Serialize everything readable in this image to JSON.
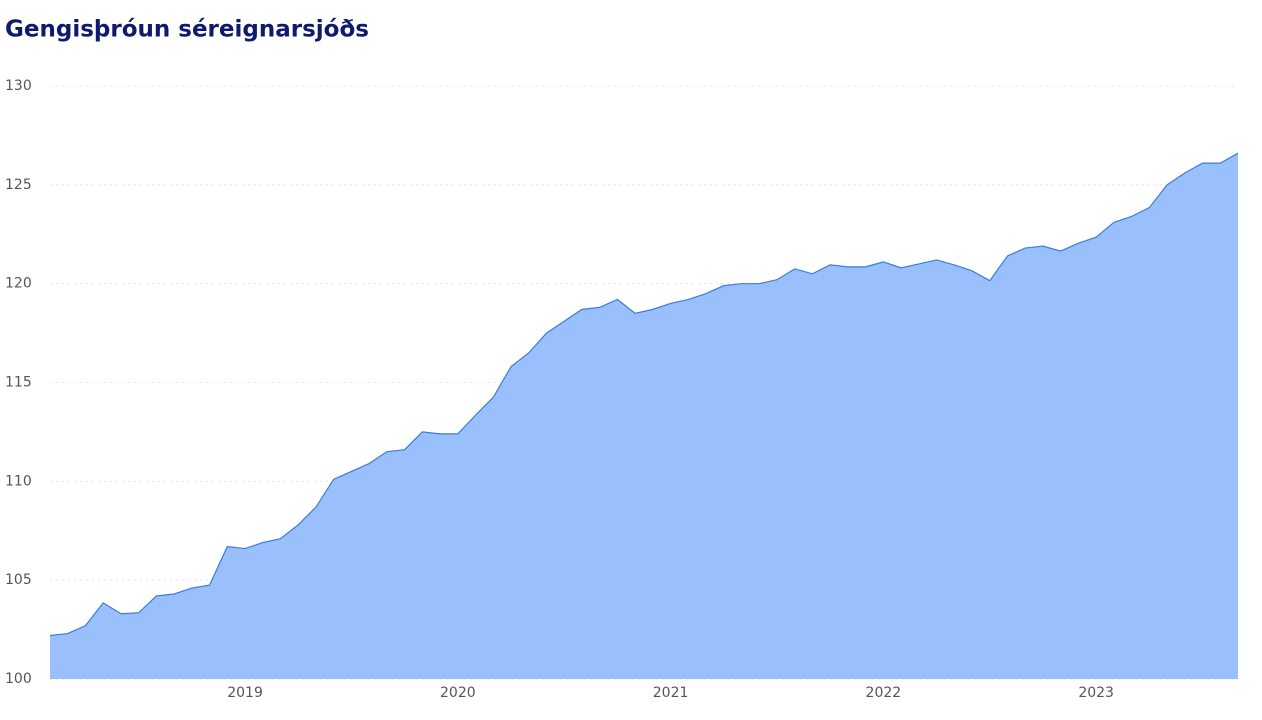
{
  "chart_data": {
    "type": "area",
    "title": "Gengisþróun séreignarsjóðs",
    "categories": [
      null,
      null,
      null,
      null,
      null,
      null,
      null,
      null,
      null,
      null,
      null,
      "2019",
      null,
      null,
      null,
      null,
      null,
      null,
      null,
      null,
      null,
      null,
      null,
      "2020",
      null,
      null,
      null,
      null,
      null,
      null,
      null,
      null,
      null,
      null,
      null,
      "2021",
      null,
      null,
      null,
      null,
      null,
      null,
      null,
      null,
      null,
      null,
      null,
      "2022",
      null,
      null,
      null,
      null,
      null,
      null,
      null,
      null,
      null,
      null,
      null,
      "2023",
      null,
      null,
      null,
      null,
      null,
      null,
      null,
      null
    ],
    "values": [
      102.2,
      102.3,
      102.7,
      103.85,
      103.3,
      103.35,
      104.2,
      104.3,
      104.6,
      104.75,
      106.7,
      106.6,
      106.9,
      107.1,
      107.8,
      108.7,
      110.1,
      110.5,
      110.9,
      111.5,
      111.6,
      112.5,
      112.4,
      112.4,
      113.35,
      114.25,
      115.8,
      116.5,
      117.5,
      118.1,
      118.7,
      118.8,
      119.2,
      118.5,
      118.7,
      119.0,
      119.2,
      119.5,
      119.9,
      120.0,
      120.0,
      120.2,
      120.75,
      120.5,
      120.95,
      120.85,
      120.85,
      121.1,
      120.8,
      121.0,
      121.2,
      120.95,
      120.65,
      120.15,
      121.4,
      121.8,
      121.9,
      121.65,
      122.05,
      122.35,
      123.1,
      123.4,
      123.85,
      125.0,
      125.6,
      126.1,
      126.1,
      126.6
    ],
    "color": "#99c0fc",
    "line_color": "#3b7dd8",
    "ylim": [
      100,
      130
    ],
    "yticks": [
      100,
      105,
      110,
      115,
      120,
      125,
      130
    ],
    "grid": true
  }
}
